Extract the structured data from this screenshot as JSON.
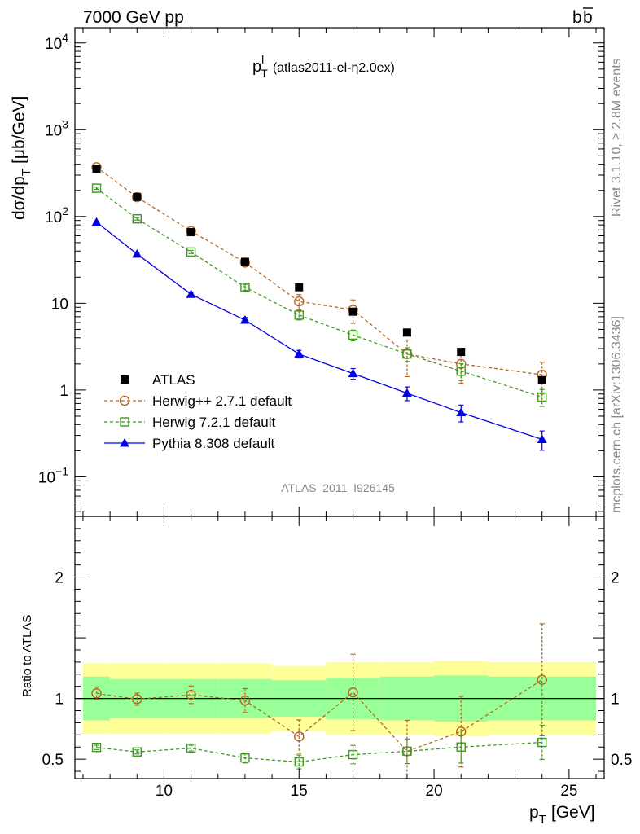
{
  "header": {
    "left": "7000 GeV pp",
    "right_base": "b",
    "right_bar": "b"
  },
  "side_texts": {
    "rivet": "Rivet 3.1.10, ≥ 2.8M events",
    "mcplots": "mcplots.cern.ch [arXiv:1306.3436]"
  },
  "chart_data": {
    "type": "scatter",
    "title_main": "p",
    "title_sup": "l",
    "title_sub": "T",
    "title_rest": "(atlas2011-el-η2.0ex)",
    "analysis_label": "ATLAS_2011_I926145",
    "ylabel_main": "dσ/dp",
    "ylabel_sub": "T",
    "ylabel_unit": "[μb/GeV]",
    "xlabel_main": "p",
    "xlabel_sub": "T",
    "xlabel_unit": "[GeV]",
    "ratio_ylabel": "Ratio to ATLAS",
    "xlim": [
      6.7,
      26.3
    ],
    "ylim": [
      0.035,
      15000
    ],
    "ylog": true,
    "ratio_ylim": [
      0.34,
      2.5
    ],
    "x_ticks": [
      10,
      15,
      20,
      25
    ],
    "y_ticks": [
      {
        "v": 0.1,
        "base": "10",
        "exp": "−1"
      },
      {
        "v": 1,
        "base": "1",
        "exp": ""
      },
      {
        "v": 10,
        "base": "10",
        "exp": ""
      },
      {
        "v": 100,
        "base": "10",
        "exp": "2"
      },
      {
        "v": 1000,
        "base": "10",
        "exp": "3"
      },
      {
        "v": 10000,
        "base": "10",
        "exp": "4"
      }
    ],
    "ratio_ticks": [
      0.5,
      1,
      2
    ],
    "x": [
      7.5,
      9,
      11,
      13,
      15,
      17,
      19,
      21,
      24
    ],
    "bins": [
      [
        7,
        8
      ],
      [
        8,
        10
      ],
      [
        10,
        12
      ],
      [
        12,
        14
      ],
      [
        14,
        16
      ],
      [
        16,
        18
      ],
      [
        18,
        20
      ],
      [
        20,
        22
      ],
      [
        22,
        26
      ]
    ],
    "data": {
      "name": "ATLAS",
      "values": [
        355,
        168,
        66,
        30,
        15.3,
        8,
        4.6,
        2.75,
        1.3
      ]
    },
    "band_inner": [
      0.18,
      0.16,
      0.16,
      0.16,
      0.15,
      0.17,
      0.18,
      0.19,
      0.18
    ],
    "band_outer": [
      0.29,
      0.29,
      0.29,
      0.29,
      0.27,
      0.3,
      0.3,
      0.31,
      0.3
    ],
    "series": [
      {
        "name": "Herwig++ 2.7.1 default",
        "marker": "circle-open",
        "dashed": true,
        "color": "#b5651d",
        "values": [
          370,
          167,
          68,
          29.5,
          10.5,
          8.4,
          2.6,
          2.0,
          1.5
        ],
        "errors_rel": [
          0.05,
          0.05,
          0.07,
          0.1,
          0.2,
          0.3,
          0.45,
          0.4,
          0.4
        ]
      },
      {
        "name": "Herwig 7.2.1 default",
        "marker": "square-open",
        "dashed": true,
        "color": "#3c9a1e",
        "values": [
          212,
          94,
          39,
          15.3,
          7.3,
          4.3,
          2.6,
          1.65,
          0.83
        ],
        "errors_rel": [
          0.03,
          0.03,
          0.04,
          0.08,
          0.12,
          0.14,
          0.18,
          0.22,
          0.22
        ]
      },
      {
        "name": "Pythia 8.308 default",
        "marker": "triangle-filled",
        "dashed": false,
        "color": "#0000e6",
        "values": [
          86,
          37,
          12.7,
          6.4,
          2.6,
          1.55,
          0.92,
          0.55,
          0.27
        ],
        "errors_rel": [
          0.03,
          0.04,
          0.05,
          0.07,
          0.1,
          0.14,
          0.18,
          0.22,
          0.25
        ]
      }
    ],
    "ratio_shown": [
      "Herwig++ 2.7.1 default",
      "Herwig 7.2.1 default"
    ],
    "legend_placement": "lower-left",
    "grid": false
  }
}
